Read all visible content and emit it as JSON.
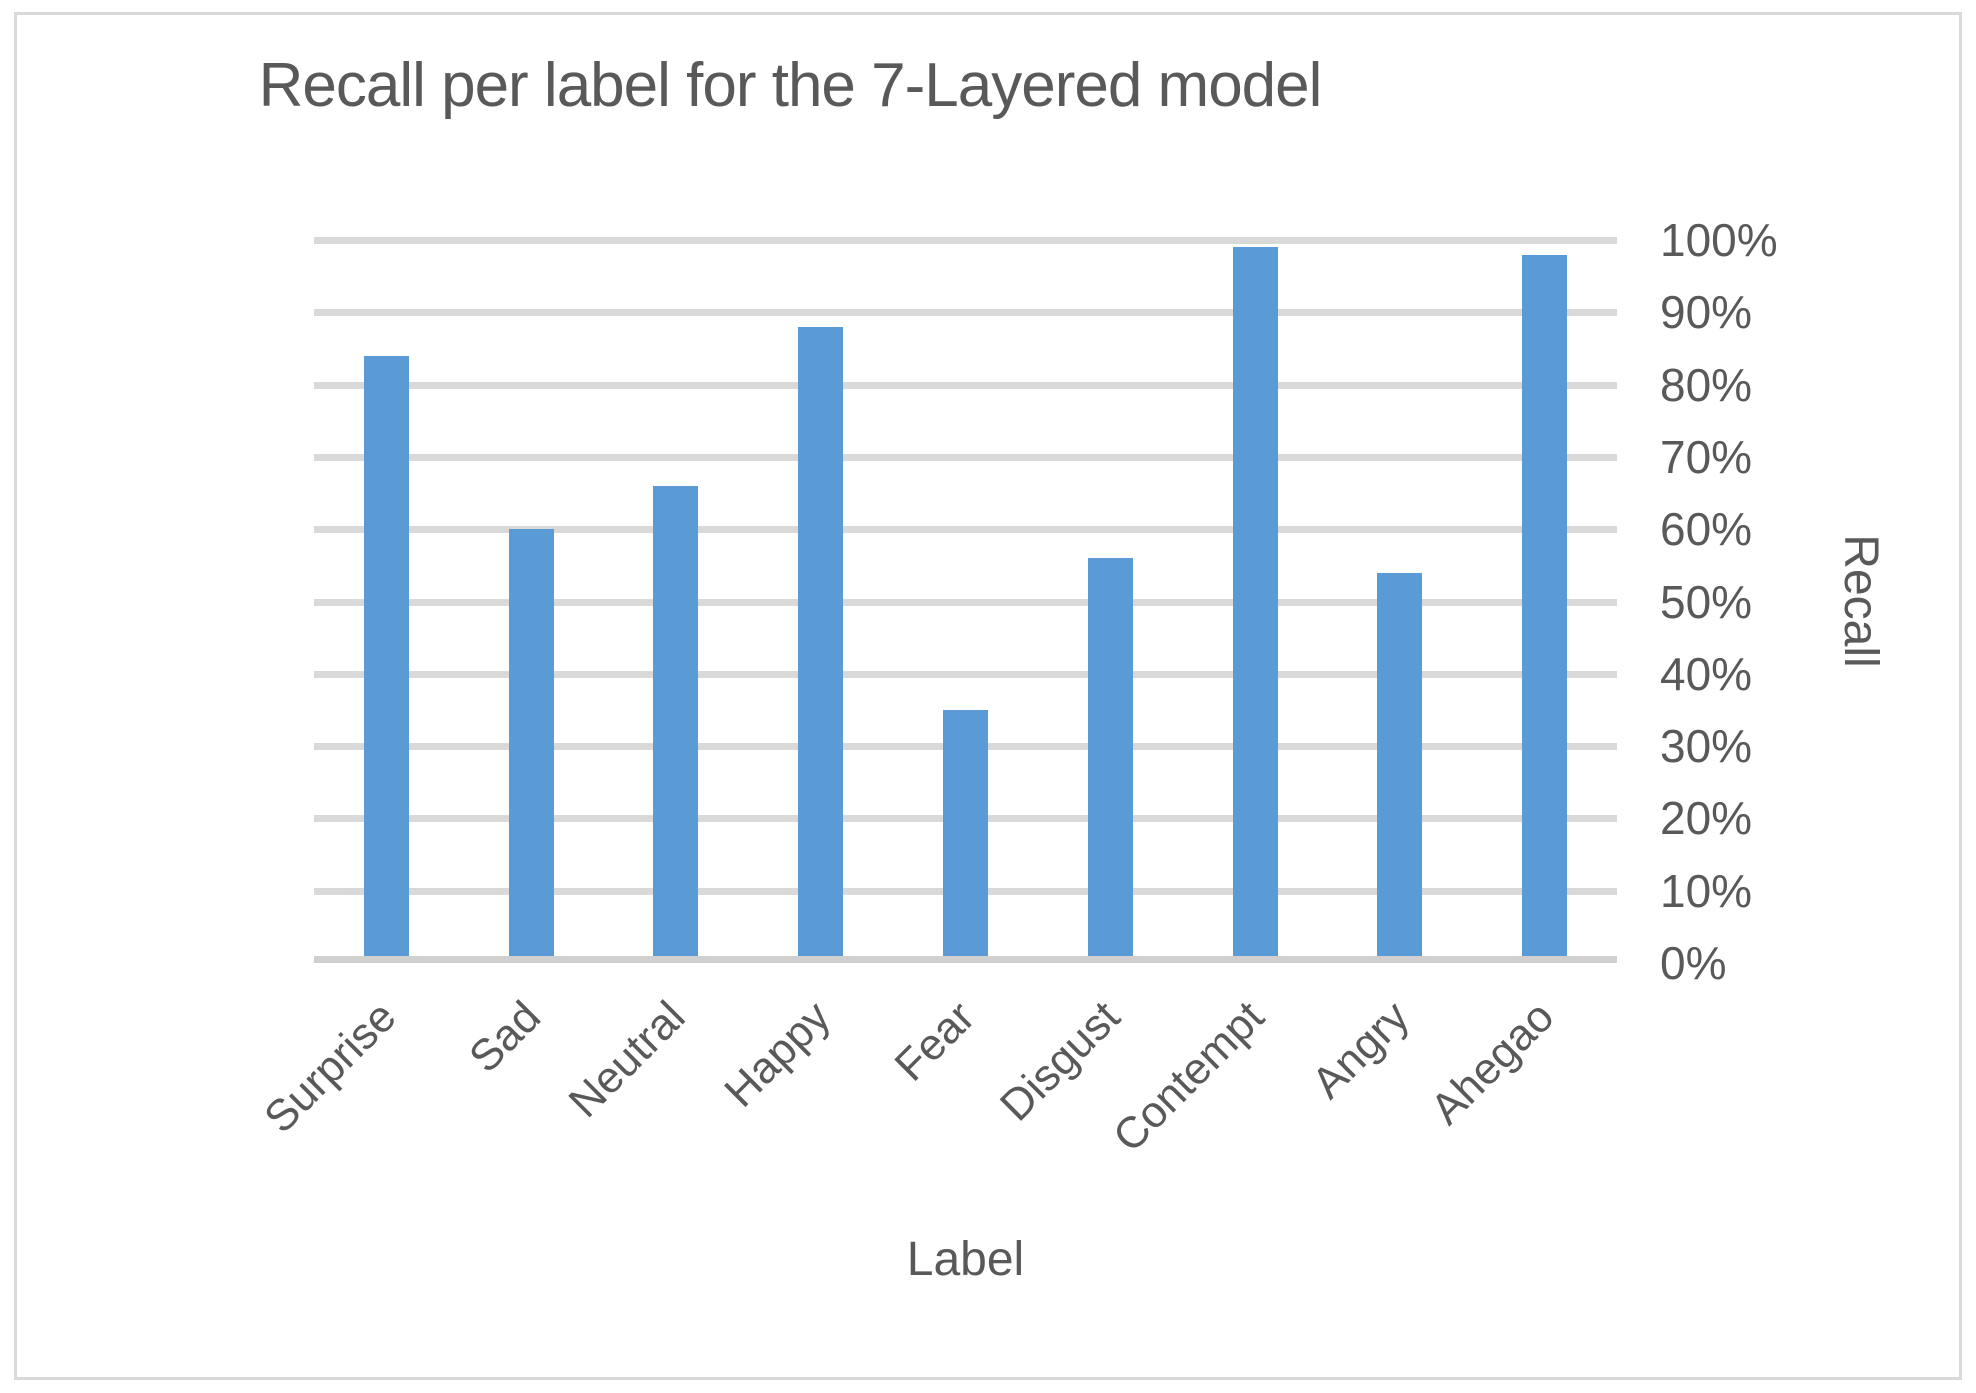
{
  "chart_data": {
    "type": "bar",
    "title": "Recall per label for the 7-Layered model",
    "xlabel": "Label",
    "ylabel": "Recall",
    "categories": [
      "Surprise",
      "Sad",
      "Neutral",
      "Happy",
      "Fear",
      "Disgust",
      "Contempt",
      "Angry",
      "Ahegao"
    ],
    "values": [
      83,
      59,
      65,
      87,
      34,
      55,
      98,
      53,
      97
    ],
    "unit": "%",
    "y_tick_labels": [
      "100%",
      "90%",
      "80%",
      "70%",
      "60%",
      "50%",
      "40%",
      "30%",
      "20%",
      "10%",
      "0%"
    ],
    "ylim": [
      0,
      100
    ],
    "grid": "horizontal",
    "legend": "none",
    "bar_color": "#5B9BD5",
    "text_color": "#595959",
    "gridline_color": "#D9D9D9",
    "axis_line_color": "#D0D0D0",
    "border_color": "#D9D9D9"
  }
}
